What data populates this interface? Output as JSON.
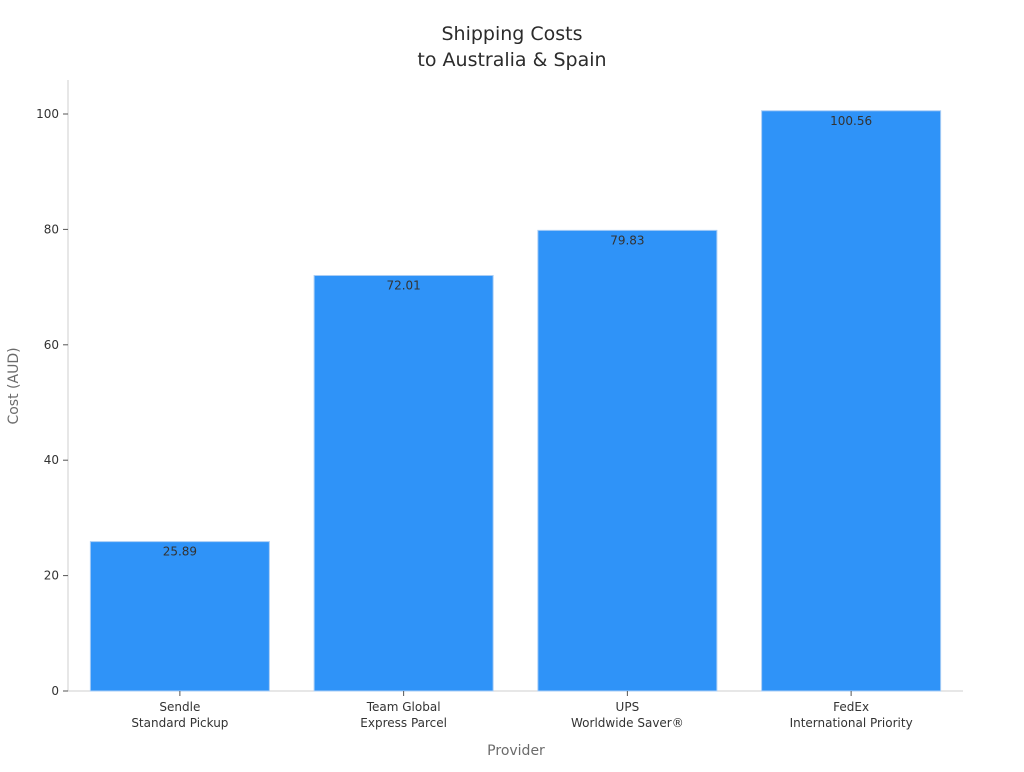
{
  "chart_data": {
    "type": "bar",
    "title": [
      "Shipping Costs",
      "to Australia & Spain"
    ],
    "xlabel": "Provider",
    "ylabel": "Cost (AUD)",
    "categories": [
      [
        "Sendle",
        "Standard Pickup"
      ],
      [
        "Team Global",
        "Express Parcel"
      ],
      [
        "UPS",
        "Worldwide Saver®"
      ],
      [
        "FedEx",
        "International Priority"
      ]
    ],
    "values": [
      25.89,
      72.01,
      79.83,
      100.56
    ],
    "value_labels": [
      "25.89",
      "72.01",
      "79.83",
      "100.56"
    ],
    "yticks": [
      0,
      20,
      40,
      60,
      80,
      100
    ],
    "ylim": [
      0,
      106
    ],
    "grid": false,
    "bar_color": "#2f93f8",
    "bar_edge_color": "#a9cdf5"
  }
}
